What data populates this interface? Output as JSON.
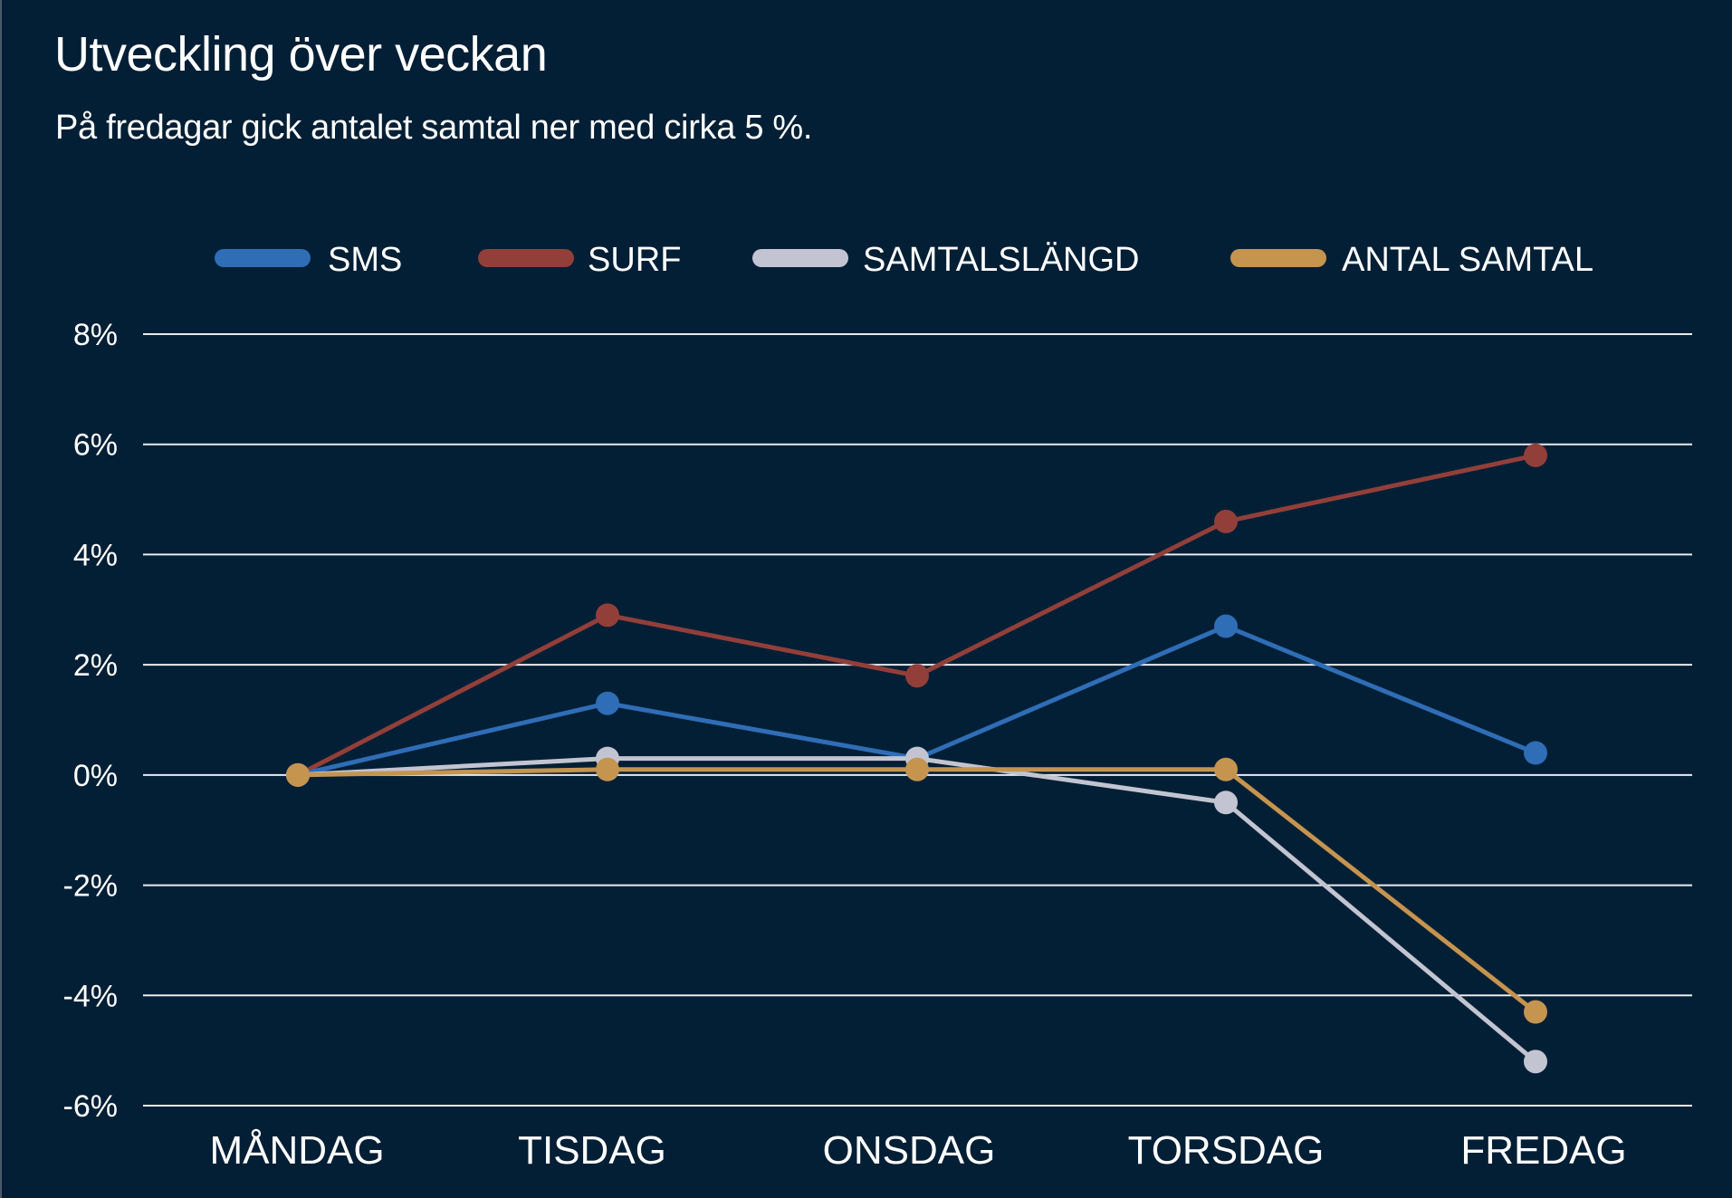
{
  "header": {
    "title": "Utveckling över veckan",
    "subtitle": "På fredagar gick antalet samtal ner med cirka 5 %."
  },
  "chart_data": {
    "type": "line",
    "title": "Utveckling över veckan",
    "subtitle": "På fredagar gick antalet samtal ner med cirka 5 %.",
    "xlabel": "",
    "ylabel": "",
    "categories": [
      "MÅNDAG",
      "TISDAG",
      "ONSDAG",
      "TORSDAG",
      "FREDAG"
    ],
    "ylim": [
      -6,
      8
    ],
    "yticks": [
      8,
      6,
      4,
      2,
      0,
      -2,
      -4,
      -6
    ],
    "ytick_labels": [
      "8%",
      "6%",
      "4%",
      "2%",
      "0%",
      "-2%",
      "-4%",
      "-6%"
    ],
    "grid": true,
    "legend_position": "top",
    "background": "#031f35",
    "series": [
      {
        "name": "SMS",
        "color": "#2f6db6",
        "values": [
          0,
          1.3,
          0.3,
          2.7,
          0.4
        ]
      },
      {
        "name": "SURF",
        "color": "#923f39",
        "values": [
          0,
          2.9,
          1.8,
          4.6,
          5.8
        ]
      },
      {
        "name": "SAMTALSLÄNGD",
        "color": "#c2c5d1",
        "values": [
          0,
          0.3,
          0.3,
          -0.5,
          -5.2
        ]
      },
      {
        "name": "ANTAL SAMTAL",
        "color": "#c5944f",
        "values": [
          0,
          0.1,
          0.1,
          0.1,
          -4.3
        ]
      }
    ]
  }
}
